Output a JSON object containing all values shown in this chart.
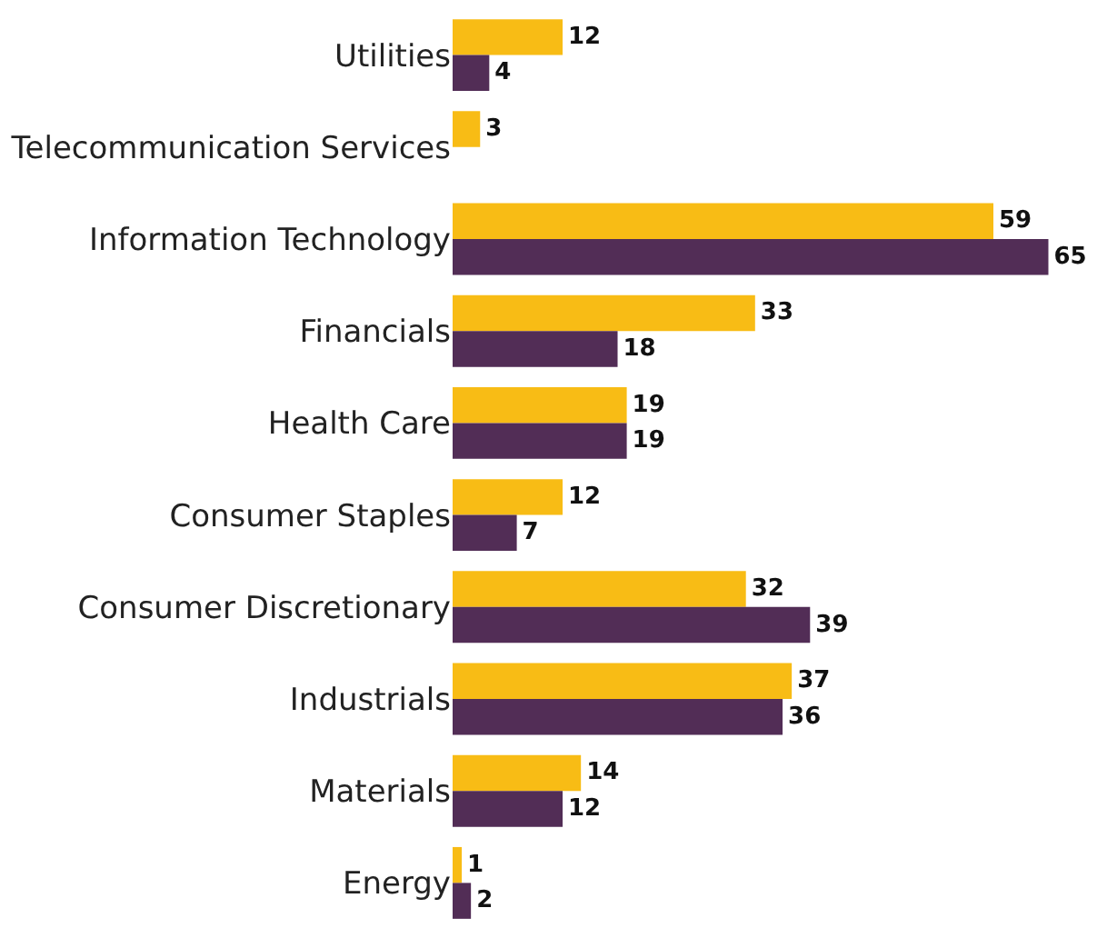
{
  "chart_data": {
    "type": "bar",
    "orientation": "horizontal",
    "data_labels": true,
    "tick_labels": "y",
    "categories": [
      "Utilities",
      "Telecommunication Services",
      "Information Technology",
      "Financials",
      "Health Care",
      "Consumer Staples",
      "Consumer Discretionary",
      "Industrials",
      "Materials",
      "Energy"
    ],
    "series": [
      {
        "color": "#f8bc15",
        "values": [
          12,
          3,
          59,
          33,
          19,
          12,
          32,
          37,
          14,
          1
        ]
      },
      {
        "color": "#522d56",
        "values": [
          4,
          null,
          65,
          18,
          19,
          7,
          39,
          36,
          12,
          2
        ]
      }
    ]
  }
}
